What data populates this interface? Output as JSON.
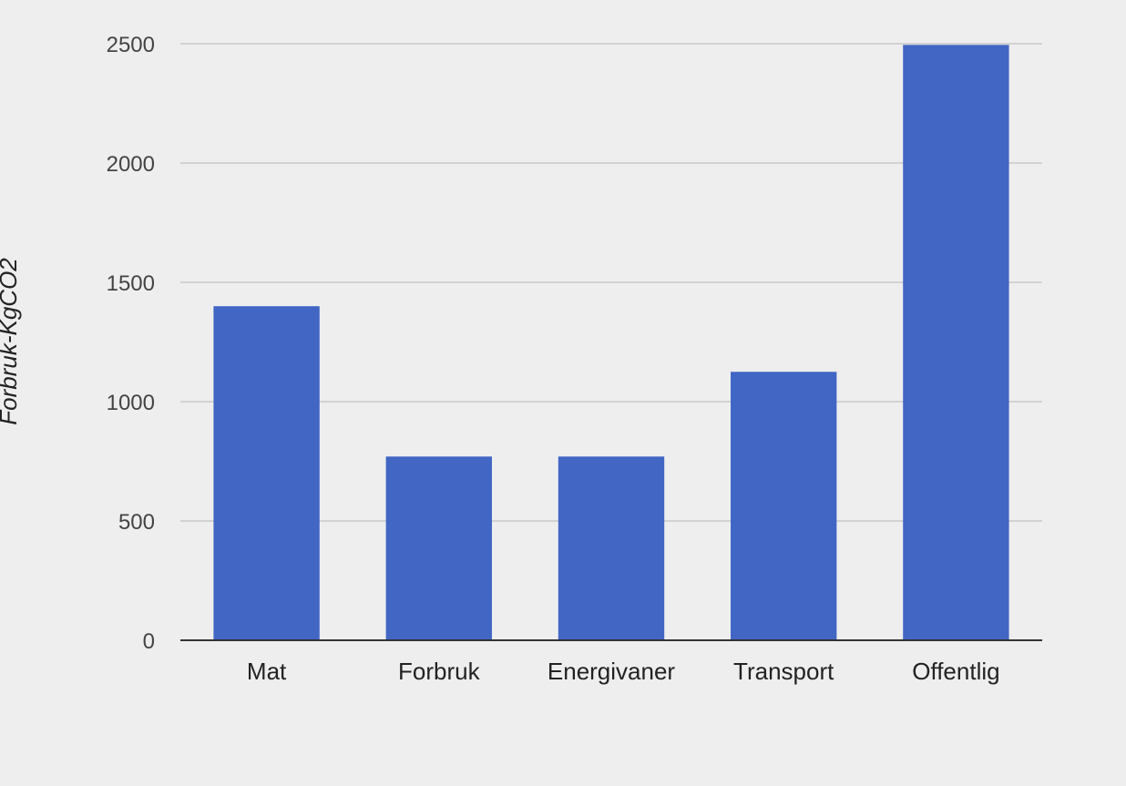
{
  "chart_data": {
    "type": "bar",
    "title": "",
    "xlabel": "",
    "ylabel": "Forbruk-KgCO2",
    "categories": [
      "Mat",
      "Forbruk",
      "Energivaner",
      "Transport",
      "Offentlig"
    ],
    "values": [
      1400,
      770,
      770,
      1125,
      2495
    ],
    "ylim": [
      0,
      2500
    ],
    "yticks": [
      "0",
      "500",
      "1000",
      "1500",
      "2000",
      "2500"
    ],
    "grid": true,
    "legend": "none",
    "bar_color": "#4166c4",
    "background_color": "#eeeeee",
    "gridline_color": "#c8c8c8",
    "baseline_color": "#333333"
  }
}
